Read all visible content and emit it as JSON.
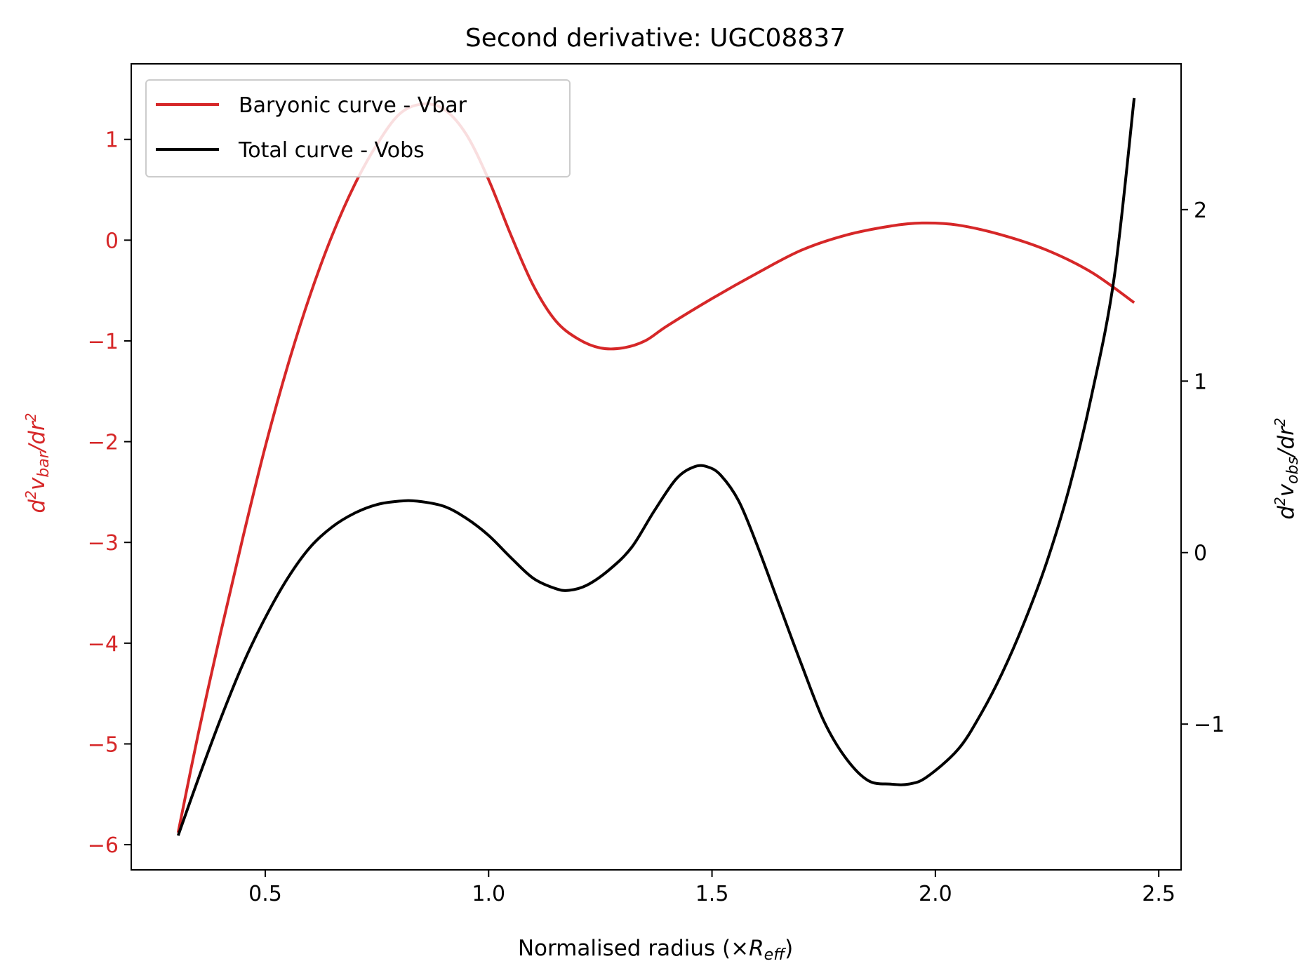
{
  "chart_data": {
    "type": "line",
    "title": "Second derivative: UGC08837",
    "xlabel": {
      "main": "Normalised radius (×",
      "sym": "R",
      "sub": "eff",
      "close": ")"
    },
    "ylabel_left": {
      "d": "d",
      "sup1": "2",
      "v": "v",
      "sub": "bar",
      "rest": "/dr",
      "sup2": "2"
    },
    "ylabel_right": {
      "d": "d",
      "sup1": "2",
      "v": "v",
      "sub": "obs",
      "rest": "/dr",
      "sup2": "2"
    },
    "xlim": [
      0.2,
      2.55
    ],
    "ylim_left": [
      -6.25,
      1.75
    ],
    "ylim_right": [
      -1.85,
      2.85
    ],
    "x_ticks": [
      "0.5",
      "1.0",
      "1.5",
      "2.0",
      "2.5"
    ],
    "y_left_ticks": [
      "1",
      "0",
      "−1",
      "−2",
      "−3",
      "−4",
      "−5",
      "−6"
    ],
    "y_right_ticks": [
      "2",
      "1",
      "0",
      "−1"
    ],
    "legend_position": "upper-left",
    "grid": false,
    "series": [
      {
        "name": "Baryonic curve - Vbar",
        "axis": "left",
        "color": "#d62728",
        "x": [
          0.305,
          0.35,
          0.4,
          0.45,
          0.5,
          0.55,
          0.6,
          0.65,
          0.7,
          0.75,
          0.8,
          0.85,
          0.9,
          0.95,
          1.0,
          1.05,
          1.1,
          1.15,
          1.2,
          1.25,
          1.3,
          1.35,
          1.4,
          1.5,
          1.6,
          1.7,
          1.8,
          1.9,
          1.97,
          2.05,
          2.15,
          2.25,
          2.35,
          2.445
        ],
        "y": [
          -5.88,
          -4.9,
          -3.9,
          -2.95,
          -2.05,
          -1.25,
          -0.55,
          0.05,
          0.55,
          0.95,
          1.25,
          1.35,
          1.3,
          1.05,
          0.6,
          0.05,
          -0.45,
          -0.8,
          -0.98,
          -1.07,
          -1.07,
          -1.0,
          -0.85,
          -0.58,
          -0.33,
          -0.1,
          0.05,
          0.14,
          0.17,
          0.15,
          0.05,
          -0.1,
          -0.32,
          -0.62
        ]
      },
      {
        "name": "Total curve - Vobs",
        "axis": "right",
        "color": "#000000",
        "x": [
          0.305,
          0.35,
          0.4,
          0.45,
          0.5,
          0.55,
          0.6,
          0.65,
          0.7,
          0.75,
          0.8,
          0.84,
          0.9,
          0.95,
          1.0,
          1.05,
          1.1,
          1.15,
          1.18,
          1.22,
          1.27,
          1.32,
          1.37,
          1.42,
          1.46,
          1.49,
          1.52,
          1.56,
          1.6,
          1.65,
          1.7,
          1.75,
          1.8,
          1.85,
          1.9,
          1.94,
          1.98,
          2.05,
          2.1,
          2.15,
          2.2,
          2.25,
          2.3,
          2.35,
          2.4,
          2.445
        ],
        "y": [
          -1.65,
          -1.32,
          -0.97,
          -0.65,
          -0.38,
          -0.15,
          0.03,
          0.15,
          0.23,
          0.28,
          0.3,
          0.3,
          0.27,
          0.2,
          0.1,
          -0.03,
          -0.15,
          -0.21,
          -0.22,
          -0.19,
          -0.1,
          0.03,
          0.24,
          0.43,
          0.5,
          0.5,
          0.45,
          0.3,
          0.05,
          -0.3,
          -0.65,
          -0.98,
          -1.2,
          -1.33,
          -1.35,
          -1.35,
          -1.31,
          -1.15,
          -0.95,
          -0.7,
          -0.4,
          -0.05,
          0.38,
          0.92,
          1.6,
          2.65
        ]
      }
    ]
  }
}
